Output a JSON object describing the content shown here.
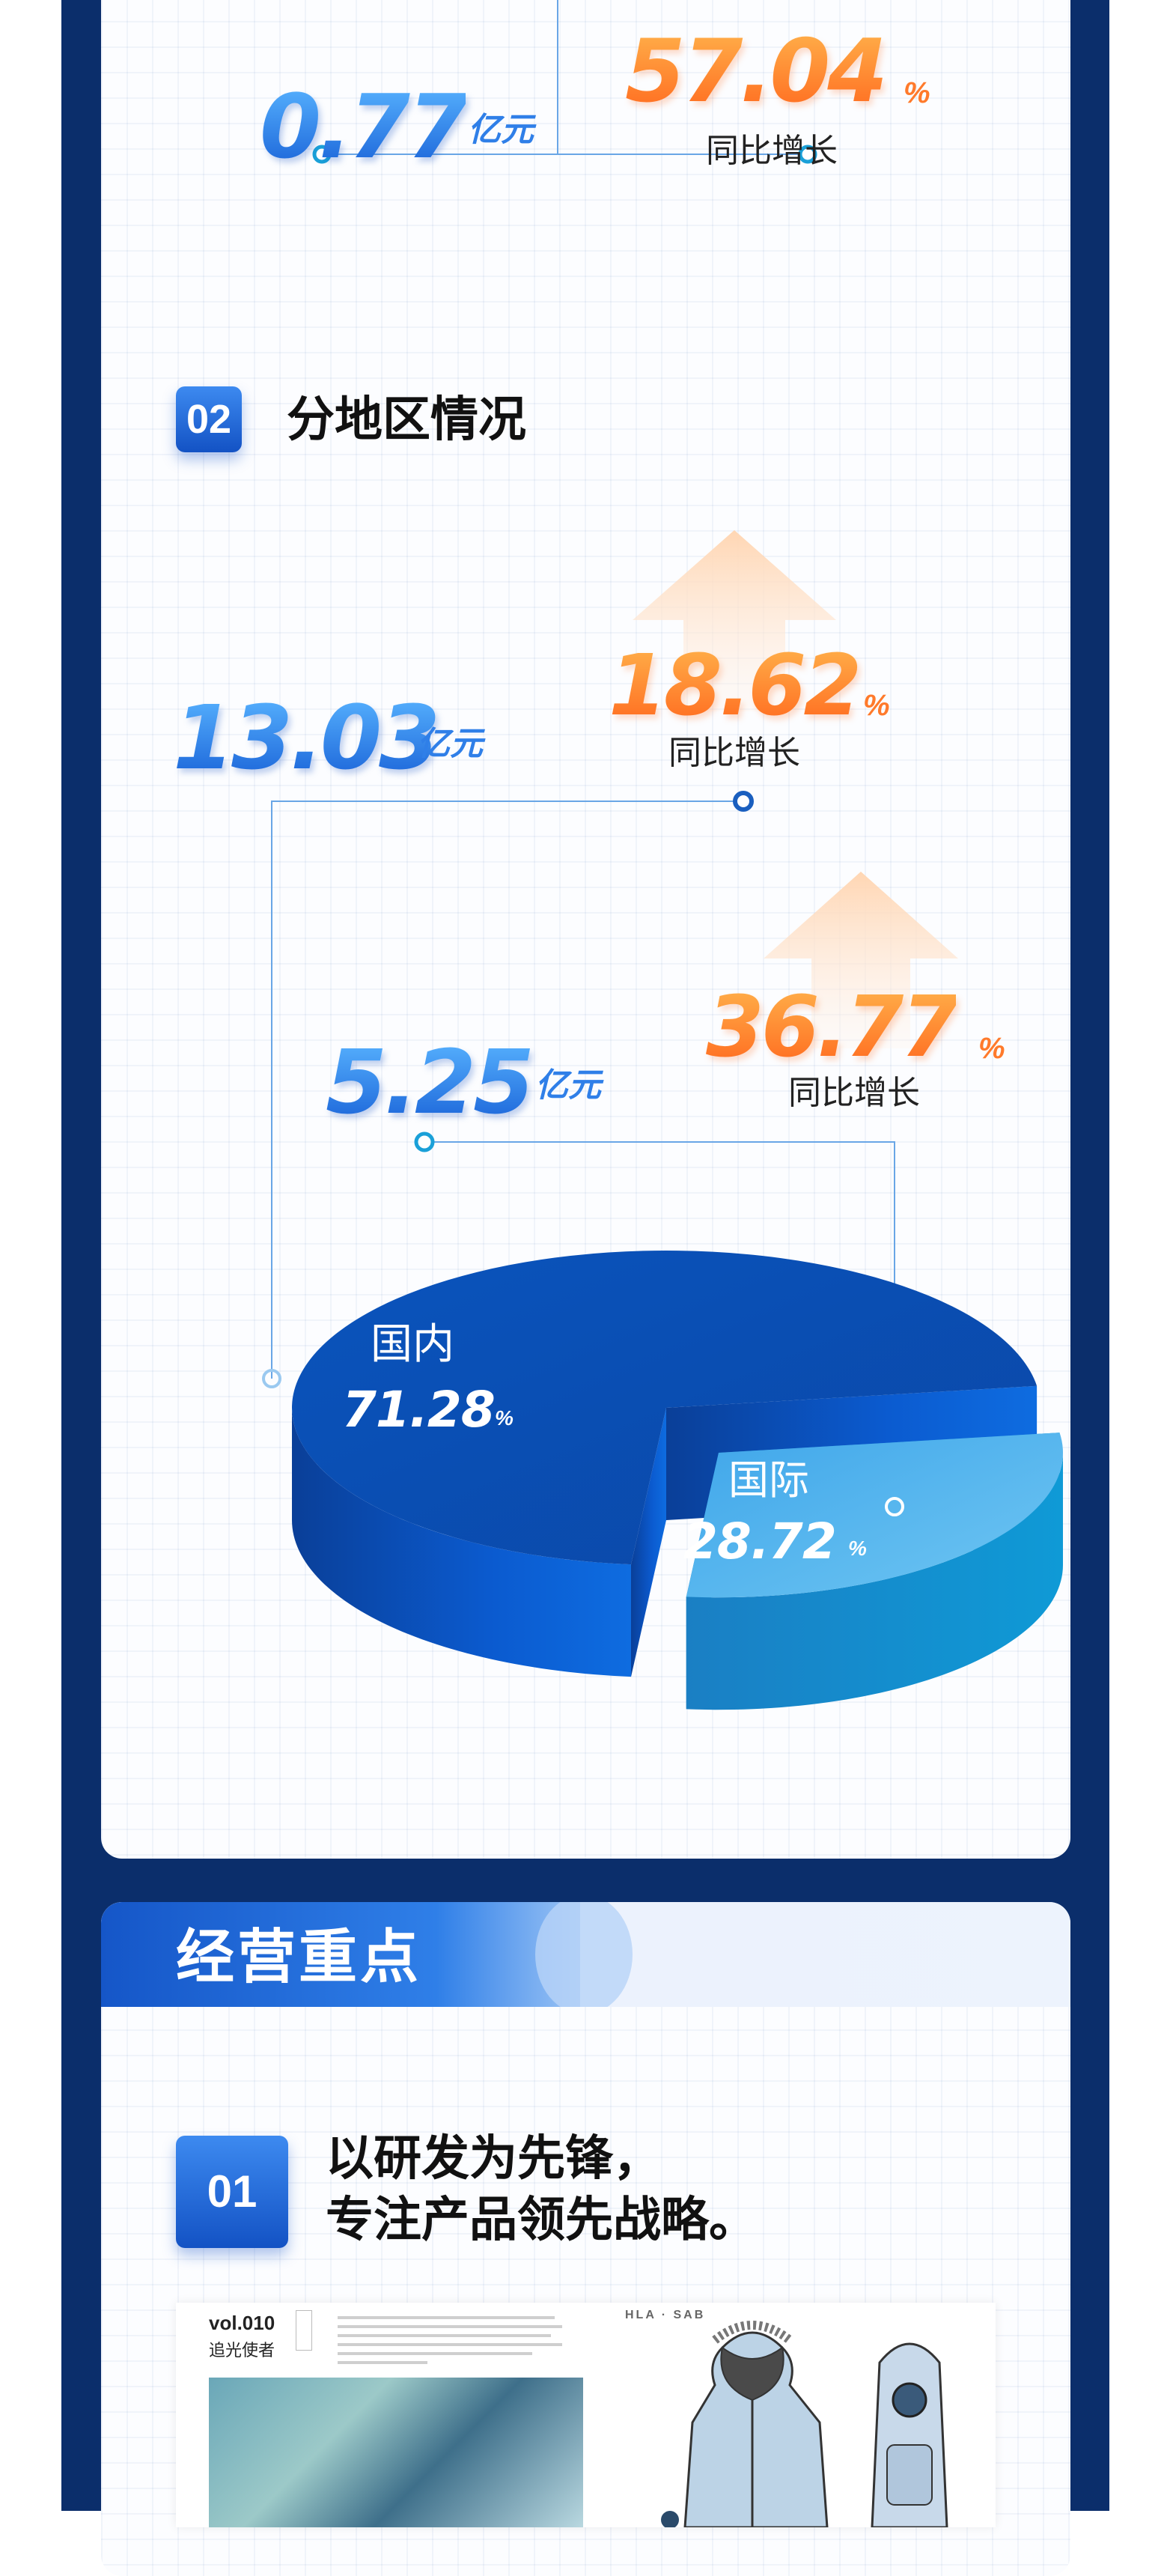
{
  "sections": {
    "region_heading": {
      "badge": "02",
      "title": "分地区情况"
    },
    "focus_banner": {
      "title": "经营重点"
    },
    "focus_item": {
      "badge": "01",
      "line1": "以研发为先锋，",
      "line2": "专注产品领先战略。"
    }
  },
  "top_stats": {
    "value": "0.77",
    "value_unit": "亿元",
    "growth": "57.04",
    "growth_unit": "%",
    "growth_label": "同比增长"
  },
  "regions": [
    {
      "name": "国内",
      "share": "71.28",
      "share_unit": "%",
      "revenue": "13.03",
      "revenue_unit": "亿元",
      "growth": "18.62",
      "growth_unit": "%",
      "growth_label": "同比增长"
    },
    {
      "name": "国际",
      "share": "28.72",
      "share_unit": "%",
      "revenue": "5.25",
      "revenue_unit": "亿元",
      "growth": "36.77",
      "growth_unit": "%",
      "growth_label": "同比增长"
    }
  ],
  "chart_data": {
    "type": "pie",
    "categories": [
      "国内",
      "国际"
    ],
    "values": [
      71.28,
      28.72
    ],
    "title": "",
    "colors": [
      "#0b5ccc",
      "#4fb2ea"
    ]
  },
  "magazine": {
    "vol": "vol.010",
    "subtitle": "追光使者",
    "brand": "HLA · SAB"
  },
  "colors": {
    "frame": "#0b2e6b",
    "accent_blue": "#1a63d8",
    "accent_orange": "#ff7a2b"
  }
}
